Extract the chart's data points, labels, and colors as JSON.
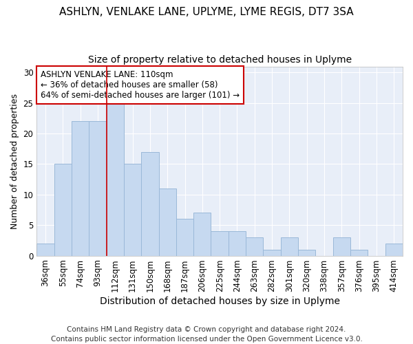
{
  "title1": "ASHLYN, VENLAKE LANE, UPLYME, LYME REGIS, DT7 3SA",
  "title2": "Size of property relative to detached houses in Uplyme",
  "xlabel": "Distribution of detached houses by size in Uplyme",
  "ylabel": "Number of detached properties",
  "categories": [
    "36sqm",
    "55sqm",
    "74sqm",
    "93sqm",
    "112sqm",
    "131sqm",
    "150sqm",
    "168sqm",
    "187sqm",
    "206sqm",
    "225sqm",
    "244sqm",
    "263sqm",
    "282sqm",
    "301sqm",
    "320sqm",
    "338sqm",
    "357sqm",
    "376sqm",
    "395sqm",
    "414sqm"
  ],
  "values": [
    2,
    15,
    22,
    22,
    25,
    15,
    17,
    11,
    6,
    7,
    4,
    4,
    3,
    1,
    3,
    1,
    0,
    3,
    1,
    0,
    2
  ],
  "bar_color": "#c6d9f0",
  "bar_edge_color": "#9ab8d8",
  "highlight_index": 4,
  "highlight_line_color": "#cc0000",
  "annotation_text": "ASHLYN VENLAKE LANE: 110sqm\n← 36% of detached houses are smaller (58)\n64% of semi-detached houses are larger (101) →",
  "annotation_box_color": "#ffffff",
  "annotation_box_edge_color": "#cc0000",
  "ylim": [
    0,
    31
  ],
  "yticks": [
    0,
    5,
    10,
    15,
    20,
    25,
    30
  ],
  "footer": "Contains HM Land Registry data © Crown copyright and database right 2024.\nContains public sector information licensed under the Open Government Licence v3.0.",
  "footer_fontsize": 7.5,
  "title1_fontsize": 11,
  "title2_fontsize": 10,
  "xlabel_fontsize": 10,
  "ylabel_fontsize": 9,
  "tick_fontsize": 8.5,
  "annot_fontsize": 8.5
}
